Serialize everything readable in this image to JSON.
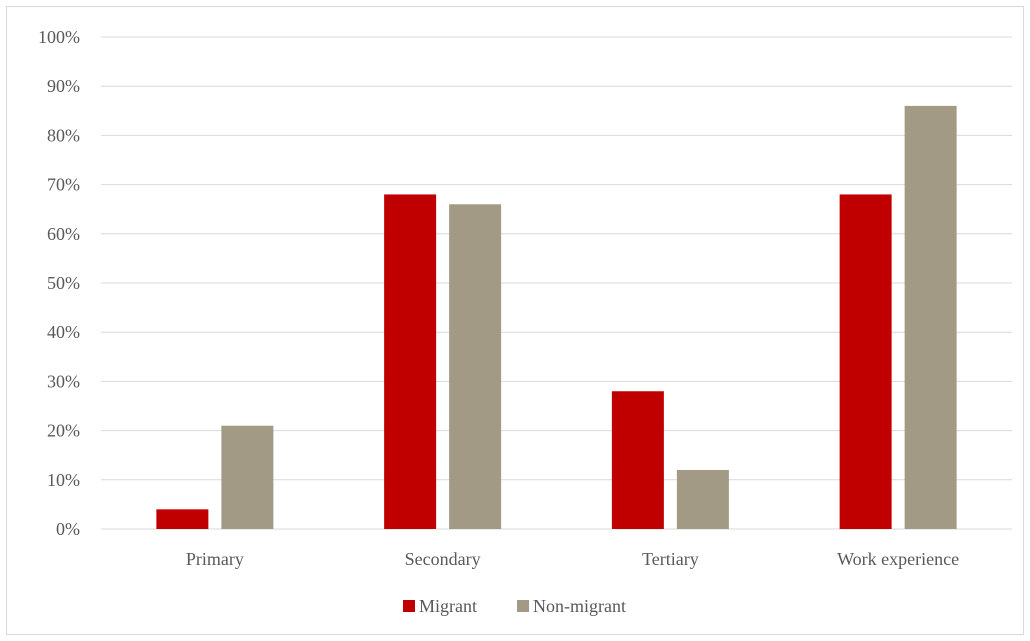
{
  "chart_data": {
    "type": "bar",
    "categories": [
      "Primary",
      "Secondary",
      "Tertiary",
      "Work experience"
    ],
    "series": [
      {
        "name": "Migrant",
        "values": [
          4,
          68,
          28,
          68
        ],
        "color": "#c00000"
      },
      {
        "name": "Non-migrant",
        "values": [
          21,
          66,
          12,
          86
        ],
        "color": "#a39a86"
      }
    ],
    "yticks": [
      "0%",
      "10%",
      "20%",
      "30%",
      "40%",
      "50%",
      "60%",
      "70%",
      "80%",
      "90%",
      "100%"
    ],
    "ylim": [
      0,
      100
    ],
    "grid": true,
    "legend_position": "bottom",
    "title": "",
    "xlabel": "",
    "ylabel": ""
  }
}
